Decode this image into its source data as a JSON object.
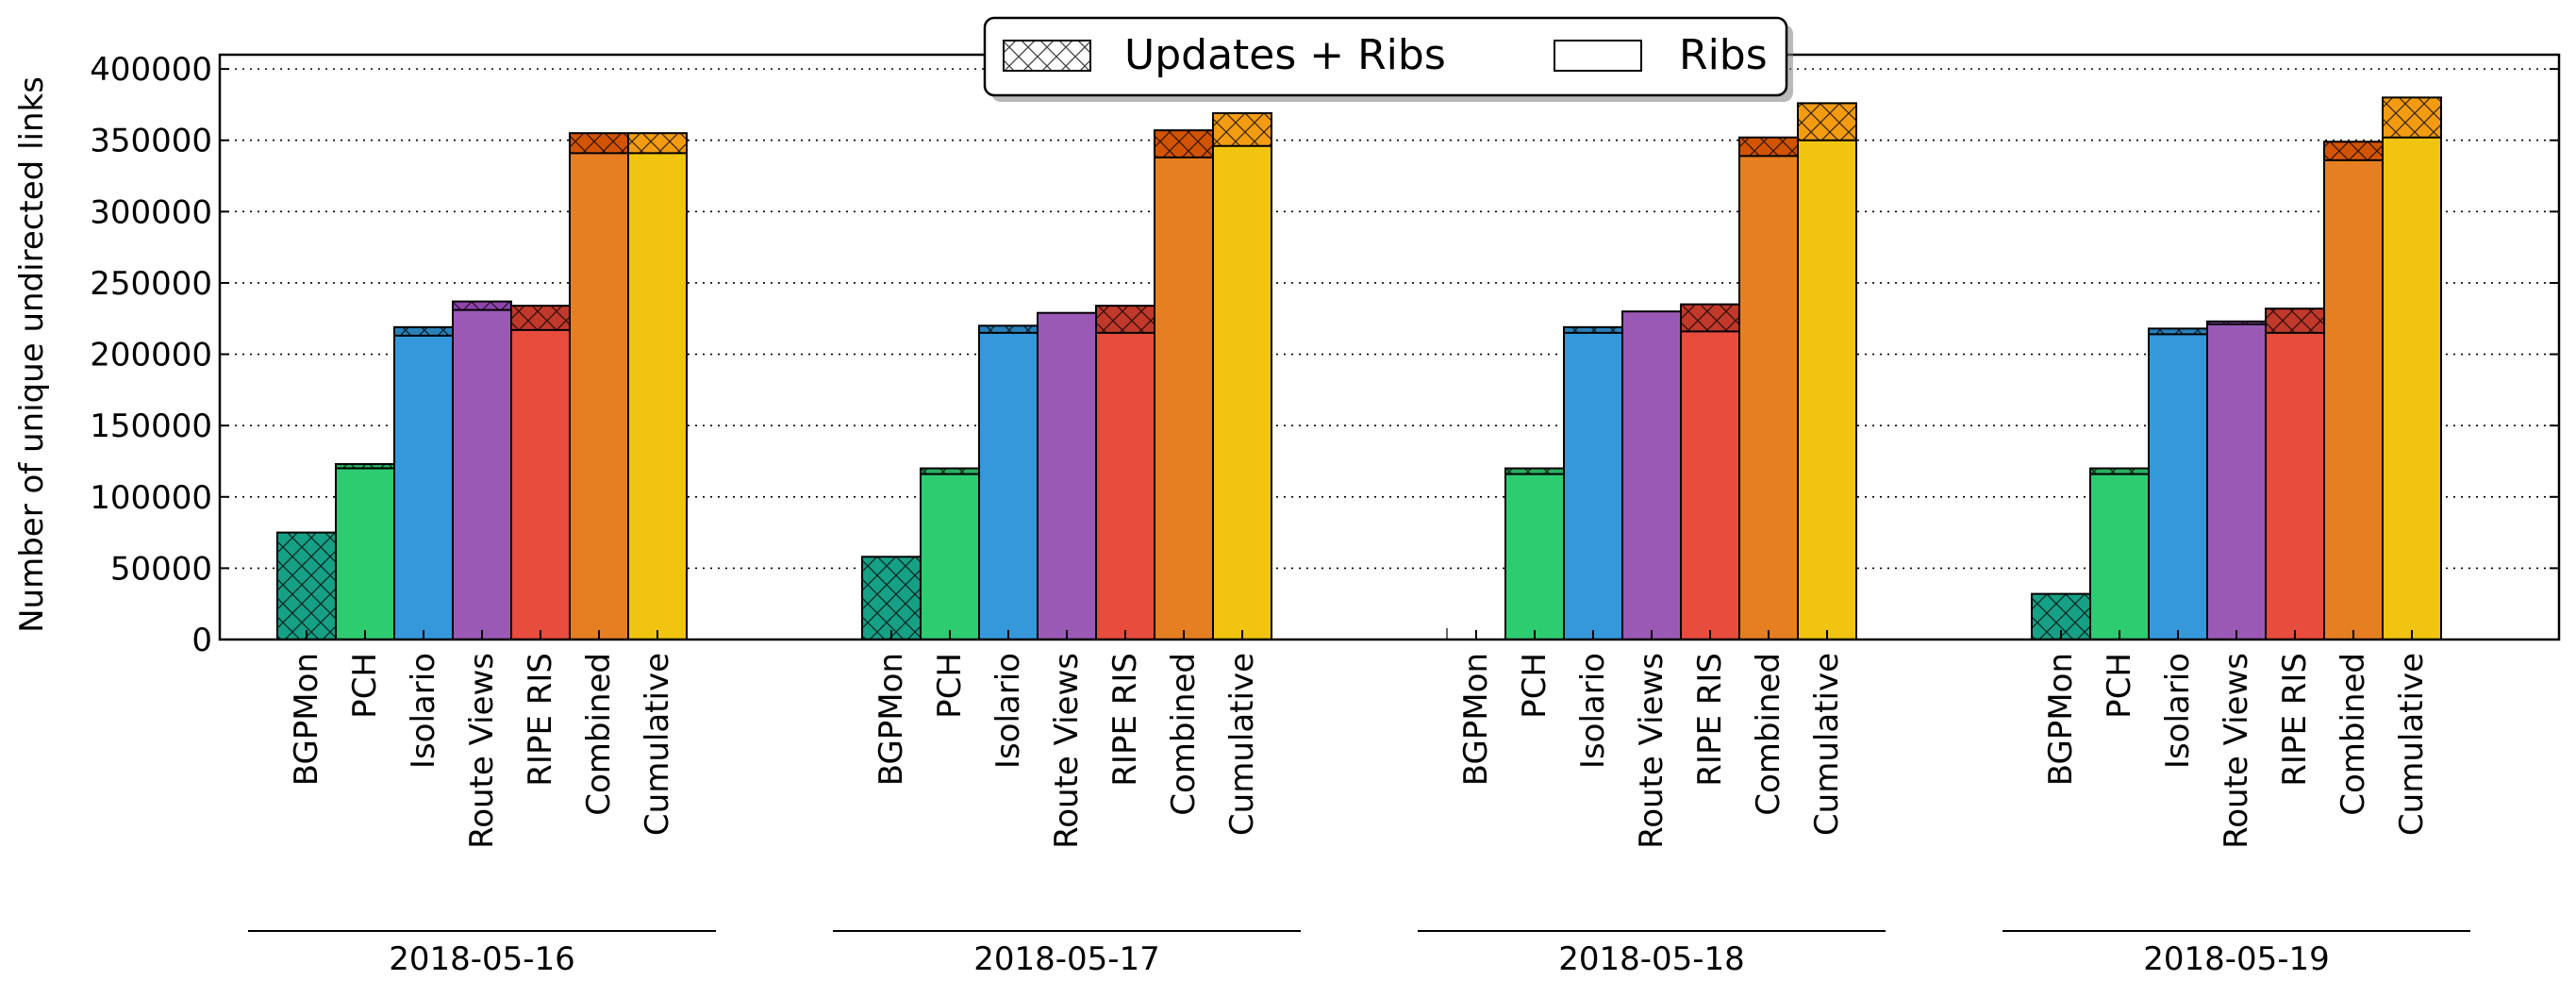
{
  "chart_data": {
    "type": "bar",
    "ylabel": "Number of unique undirected links",
    "ylim": [
      0,
      410000
    ],
    "yticks": [
      0,
      50000,
      100000,
      150000,
      200000,
      250000,
      300000,
      350000,
      400000
    ],
    "grid": "y, dotted",
    "legend_placement": "top-center",
    "legend": [
      {
        "label": "Updates + Ribs",
        "style": "hatched"
      },
      {
        "label": "Ribs",
        "style": "plain"
      }
    ],
    "categories": [
      "BGPMon",
      "PCH",
      "Isolario",
      "Route Views",
      "RIPE RIS",
      "Combined",
      "Cumulative"
    ],
    "colors": {
      "BGPMon": "#16a085",
      "PCH": "#2ecc71",
      "Isolario": "#3498db",
      "Route Views": "#9b59b6",
      "RIPE RIS": "#e74c3c",
      "Combined": "#e67e22",
      "Cumulative": "#f1c40f"
    },
    "update_colors": {
      "BGPMon": "#16a085",
      "PCH": "#27ae60",
      "Isolario": "#2980b9",
      "Route Views": "#8e44ad",
      "RIPE RIS": "#c0392b",
      "Combined": "#d35400",
      "Cumulative": "#f39c12"
    },
    "groups": [
      {
        "date": "2018-05-16",
        "ribs": [
          0,
          120000,
          213000,
          231000,
          217000,
          341000,
          341000
        ],
        "updates_ribs": [
          75000,
          123000,
          219000,
          237000,
          234000,
          355000,
          355000
        ]
      },
      {
        "date": "2018-05-17",
        "ribs": [
          0,
          116000,
          215000,
          229000,
          215000,
          338000,
          346000
        ],
        "updates_ribs": [
          58000,
          120000,
          220000,
          229000,
          234000,
          357000,
          369000
        ]
      },
      {
        "date": "2018-05-18",
        "ribs": [
          0,
          116000,
          215000,
          230000,
          216000,
          339000,
          350000
        ],
        "updates_ribs": [
          0,
          120000,
          219000,
          230000,
          235000,
          352000,
          376000
        ]
      },
      {
        "date": "2018-05-19",
        "ribs": [
          0,
          116000,
          214000,
          221000,
          215000,
          336000,
          352000
        ],
        "updates_ribs": [
          32000,
          120000,
          218000,
          223000,
          232000,
          349000,
          380000
        ]
      }
    ]
  }
}
